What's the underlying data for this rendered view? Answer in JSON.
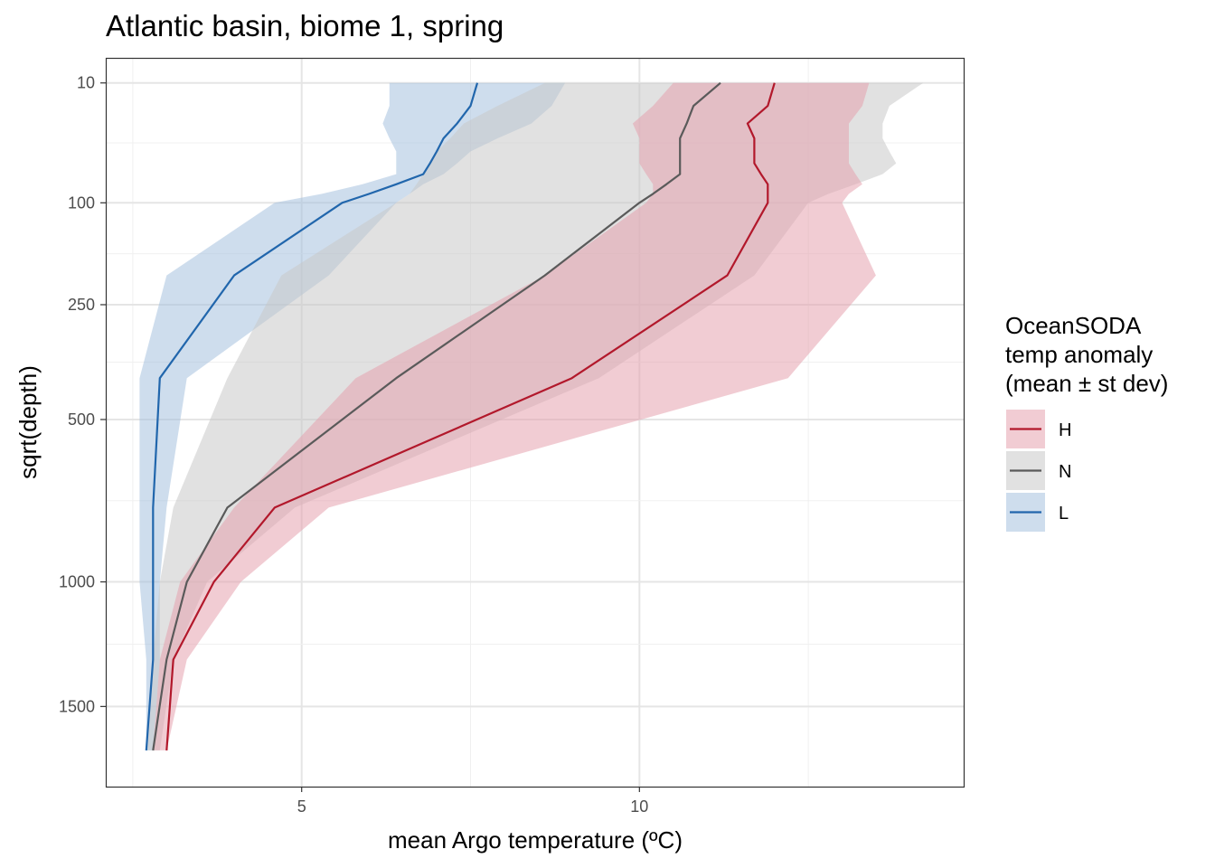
{
  "chart_data": {
    "type": "line",
    "title": "Atlantic basin, biome 1, spring",
    "xlabel": "mean Argo temperature (ºC)",
    "ylabel": "sqrt(depth)",
    "xlim": [
      2.1,
      14.8
    ],
    "ylim": [
      1875,
      3
    ],
    "y_scale": "sqrt",
    "y_reversed": true,
    "grid": true,
    "x_ticks": [
      5,
      10
    ],
    "x_tick_labels": [
      "5",
      "10"
    ],
    "y_ticks": [
      10,
      100,
      250,
      500,
      1000,
      1500
    ],
    "y_tick_labels": [
      "10",
      "100",
      "250",
      "500",
      "1000",
      "1500"
    ],
    "legend": {
      "title": [
        "OceanSODA",
        "temp anomaly",
        "(mean ± st dev)"
      ],
      "position": "right",
      "entries": [
        "H",
        "N",
        "L"
      ]
    },
    "series": [
      {
        "name": "H",
        "color": "#b2182b",
        "fill": "#e6a3ae",
        "depth": [
          10,
          20,
          30,
          40,
          50,
          60,
          70,
          80,
          90,
          100,
          200,
          400,
          750,
          1000,
          1300,
          1700
        ],
        "mean": [
          12.0,
          11.9,
          11.6,
          11.7,
          11.7,
          11.7,
          11.8,
          11.9,
          11.9,
          11.9,
          11.3,
          9.0,
          4.6,
          3.7,
          3.1,
          3.0
        ],
        "sd_low": [
          10.5,
          10.2,
          9.9,
          10.0,
          10.0,
          10.0,
          10.1,
          10.2,
          10.2,
          10.1,
          8.6,
          5.8,
          4.0,
          3.2,
          2.9,
          2.8
        ],
        "sd_high": [
          13.4,
          13.3,
          13.1,
          13.1,
          13.1,
          13.1,
          13.2,
          13.3,
          13.1,
          13.0,
          13.5,
          12.2,
          5.4,
          4.1,
          3.3,
          3.0
        ]
      },
      {
        "name": "N",
        "color": "#5a5a5a",
        "fill": "#c8c8c8",
        "depth": [
          10,
          20,
          30,
          40,
          50,
          60,
          70,
          80,
          90,
          100,
          200,
          400,
          750,
          1000,
          1300,
          1700
        ],
        "mean": [
          11.2,
          10.8,
          10.7,
          10.6,
          10.6,
          10.6,
          10.6,
          10.4,
          10.2,
          10.0,
          8.6,
          6.4,
          3.9,
          3.3,
          3.0,
          2.8
        ],
        "sd_low": [
          8.6,
          7.9,
          7.4,
          7.2,
          7.0,
          6.9,
          6.8,
          6.7,
          6.6,
          6.4,
          4.7,
          3.9,
          3.1,
          2.9,
          2.8,
          2.7
        ],
        "sd_high": [
          14.2,
          13.7,
          13.6,
          13.6,
          13.7,
          13.8,
          13.6,
          13.2,
          12.8,
          12.5,
          11.7,
          9.4,
          4.9,
          3.6,
          3.1,
          2.9
        ]
      },
      {
        "name": "L",
        "color": "#2166ac",
        "fill": "#a6c1de",
        "depth": [
          10,
          20,
          30,
          40,
          50,
          60,
          70,
          80,
          90,
          100,
          200,
          400,
          750,
          1000,
          1300,
          1700
        ],
        "mean": [
          7.6,
          7.5,
          7.3,
          7.1,
          7.0,
          6.9,
          6.8,
          6.4,
          6.0,
          5.6,
          4.0,
          2.9,
          2.8,
          2.8,
          2.8,
          2.7
        ],
        "sd_low": [
          6.3,
          6.3,
          6.2,
          6.3,
          6.4,
          6.4,
          6.4,
          5.9,
          5.3,
          4.6,
          3.0,
          2.6,
          2.6,
          2.6,
          2.7,
          2.7
        ],
        "sd_high": [
          8.9,
          8.7,
          8.4,
          7.9,
          7.5,
          7.3,
          7.1,
          6.8,
          6.6,
          6.4,
          5.4,
          3.3,
          3.0,
          2.9,
          2.9,
          2.8
        ]
      }
    ]
  }
}
